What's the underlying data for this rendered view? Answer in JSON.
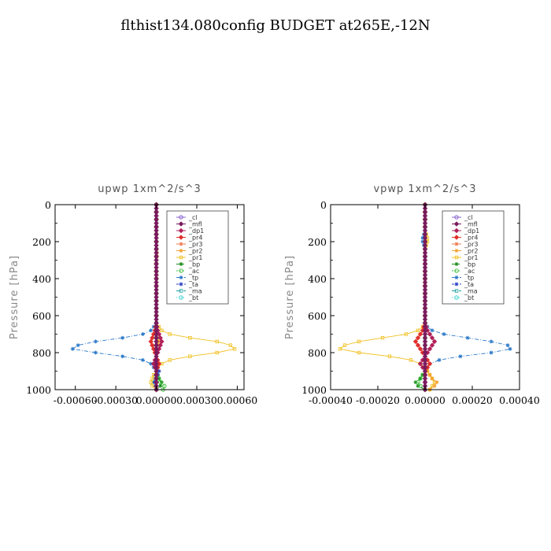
{
  "title": "flthist134.080config  BUDGET at265E,-12N",
  "colors": {
    "_cl": "#8a63d2",
    "_mfl": "#7a1a5e",
    "_dp1": "#b0205a",
    "_pr4": "#e0302c",
    "_pr3": "#f07848",
    "_pr2": "#f5a030",
    "_pr1": "#f0c020",
    "_bp": "#1a8a1a",
    "_ac": "#40c040",
    "_tp": "#2a78c8",
    "_ta": "#2a40c8",
    "_ma": "#20a0a0",
    "_bt": "#30d0d0"
  },
  "chart_data": [
    {
      "type": "line",
      "title": "upwp   1xm^2/s^3",
      "ylabel": "Pressure [hPa]",
      "xlim": [
        -0.00075,
        0.00065
      ],
      "ylim": [
        1000,
        0
      ],
      "xticks": [
        -0.0006,
        -0.0003,
        0.0,
        0.0003,
        0.0006
      ],
      "xtick_labels": [
        "-0.00060",
        "-0.00030",
        "0.00000",
        "0.00030",
        "0.00060"
      ],
      "yticks": [
        0,
        200,
        400,
        600,
        800,
        1000
      ],
      "ytick_labels": [
        "0",
        "200",
        "400",
        "600",
        "800",
        "1000"
      ],
      "legend": [
        "_cl",
        "_mfl",
        "_dp1",
        "_pr4",
        "_pr3",
        "_pr2",
        "_pr1",
        "_bp",
        "_ac",
        "_tp",
        "_ta",
        "_ma",
        "_bt"
      ],
      "series": [
        {
          "name": "_tp",
          "x": [
            0,
            0,
            0,
            0,
            0,
            0,
            0,
            0,
            0,
            0,
            0,
            0,
            0,
            0,
            0,
            0,
            0,
            0,
            0,
            0,
            0,
            0,
            0,
            0,
            0,
            0,
            0,
            0,
            0,
            0,
            0,
            0,
            0,
            -2e-05,
            -4e-05,
            -0.0001,
            -0.00025,
            -0.00045,
            -0.00058,
            -0.00062,
            -0.00045,
            -0.00025,
            -0.0001,
            -4e-05,
            -2e-05,
            0,
            -1e-05,
            -1e-05,
            -2e-05,
            -1e-05,
            0
          ]
        },
        {
          "name": "_pr1",
          "x": [
            0,
            0,
            0,
            0,
            0,
            0,
            0,
            0,
            0,
            0,
            0,
            0,
            0,
            0,
            0,
            0,
            0,
            0,
            0,
            0,
            0,
            0,
            0,
            0,
            0,
            0,
            0,
            0,
            0,
            0,
            0,
            0,
            0,
            2e-05,
            4e-05,
            0.0001,
            0.00025,
            0.00045,
            0.00055,
            0.00058,
            0.00045,
            0.00025,
            0.0001,
            4e-05,
            1e-05,
            0,
            -2e-05,
            -3e-05,
            -4e-05,
            -3e-05,
            0
          ]
        },
        {
          "name": "_pr2",
          "x": [
            0,
            0,
            0,
            0,
            0,
            0,
            0,
            0,
            0,
            0,
            0,
            0,
            0,
            5e-06,
            5e-06,
            0,
            0,
            0,
            0,
            0,
            0,
            0,
            0,
            0,
            0,
            0,
            0,
            0,
            0,
            0,
            0,
            0,
            0,
            0,
            0,
            0,
            1e-05,
            2e-05,
            1e-05,
            0,
            0,
            0,
            0,
            0,
            0,
            0,
            0,
            0,
            0,
            0,
            0
          ]
        },
        {
          "name": "_bp",
          "x": [
            0,
            0,
            0,
            0,
            0,
            0,
            0,
            0,
            0,
            0,
            0,
            0,
            0,
            0,
            0,
            0,
            0,
            0,
            0,
            0,
            0,
            0,
            0,
            0,
            0,
            0,
            0,
            0,
            0,
            0,
            0,
            0,
            0,
            0,
            0,
            0,
            0,
            0,
            0,
            0,
            0,
            0,
            0,
            0,
            0,
            0,
            1e-05,
            2e-05,
            4e-05,
            3e-05,
            0
          ]
        },
        {
          "name": "_ac",
          "x": [
            0,
            0,
            0,
            0,
            0,
            0,
            0,
            0,
            0,
            0,
            0,
            0,
            0,
            0,
            0,
            0,
            0,
            0,
            0,
            0,
            0,
            0,
            0,
            0,
            0,
            0,
            0,
            0,
            0,
            0,
            0,
            0,
            0,
            0,
            0,
            0,
            0,
            0,
            0,
            0,
            0,
            0,
            0,
            0,
            0,
            0,
            1e-05,
            2e-05,
            3e-05,
            6e-05,
            5e-05
          ]
        },
        {
          "name": "_ta",
          "x": [
            0,
            0,
            0,
            0,
            0,
            0,
            0,
            0,
            0,
            0,
            0,
            0,
            0,
            0,
            0,
            0,
            0,
            0,
            0,
            0,
            0,
            0,
            0,
            0,
            0,
            0,
            0,
            0,
            0,
            0,
            0,
            0,
            0,
            0,
            0,
            0,
            0,
            0,
            0,
            0,
            0,
            0,
            0,
            0,
            1e-05,
            2e-05,
            1e-05,
            0,
            -1e-05,
            0,
            0
          ]
        },
        {
          "name": "_pr4",
          "x": [
            0,
            0,
            0,
            0,
            0,
            0,
            0,
            0,
            0,
            0,
            0,
            0,
            0,
            0,
            0,
            0,
            0,
            0,
            0,
            0,
            0,
            0,
            0,
            0,
            0,
            0,
            0,
            0,
            0,
            0,
            0,
            0,
            0,
            -5e-06,
            -1e-05,
            -2e-05,
            -3e-05,
            -4e-05,
            -3e-05,
            -2e-05,
            -1e-05,
            0,
            1e-05,
            2e-05,
            1e-05,
            0,
            0,
            0,
            0,
            0,
            0
          ]
        },
        {
          "name": "_dp1",
          "x": [
            0,
            0,
            0,
            0,
            0,
            0,
            0,
            0,
            0,
            0,
            0,
            0,
            0,
            0,
            0,
            0,
            0,
            0,
            0,
            0,
            0,
            0,
            0,
            0,
            0,
            0,
            0,
            0,
            0,
            0,
            0,
            0,
            0,
            5e-06,
            1e-05,
            2e-05,
            3e-05,
            4e-05,
            3e-05,
            2e-05,
            1e-05,
            0,
            -1e-05,
            -2e-05,
            -1e-05,
            0,
            0,
            0,
            0,
            0,
            0
          ]
        },
        {
          "name": "_mfl",
          "x": [
            0,
            0,
            0,
            0,
            0,
            0,
            0,
            0,
            0,
            0,
            0,
            0,
            0,
            0,
            0,
            0,
            0,
            0,
            0,
            0,
            0,
            0,
            0,
            0,
            0,
            0,
            0,
            0,
            0,
            0,
            0,
            0,
            0,
            0,
            0,
            0,
            0,
            0,
            0,
            0,
            0,
            0,
            0,
            0,
            0,
            0,
            0,
            0,
            0,
            0,
            0
          ]
        }
      ]
    },
    {
      "type": "line",
      "title": "vpwp   1xm^2/s^3",
      "ylabel": "Pressure [hPa]",
      "xlim": [
        -0.0004,
        0.0004
      ],
      "ylim": [
        1000,
        0
      ],
      "xticks": [
        -0.0004,
        -0.0002,
        0.0,
        0.0002,
        0.0004
      ],
      "xtick_labels": [
        "-0.00040",
        "-0.00020",
        "0.00000",
        "0.00020",
        "0.00040"
      ],
      "yticks": [
        0,
        200,
        400,
        600,
        800,
        1000
      ],
      "ytick_labels": [
        "0",
        "200",
        "400",
        "600",
        "800",
        "1000"
      ],
      "legend": [
        "_cl",
        "_mfl",
        "_dp1",
        "_pr4",
        "_pr3",
        "_pr2",
        "_pr1",
        "_bp",
        "_ac",
        "_tp",
        "_ta",
        "_ma",
        "_bt"
      ],
      "series": [
        {
          "name": "_tp",
          "x": [
            0,
            0,
            0,
            0,
            0,
            0,
            0,
            0,
            -5e-06,
            -1e-05,
            -1e-05,
            -5e-06,
            0,
            0,
            0,
            0,
            0,
            0,
            0,
            0,
            0,
            0,
            0,
            0,
            0,
            0,
            0,
            0,
            0,
            0,
            0,
            0,
            0,
            1e-05,
            3e-05,
            8e-05,
            0.00018,
            0.00028,
            0.00035,
            0.00036,
            0.00028,
            0.00015,
            6e-05,
            2e-05,
            1e-05,
            0,
            0,
            0,
            0,
            0,
            0
          ]
        },
        {
          "name": "_pr1",
          "x": [
            0,
            0,
            0,
            0,
            0,
            0,
            0,
            0,
            5e-06,
            1e-05,
            1e-05,
            5e-06,
            0,
            0,
            0,
            0,
            0,
            0,
            0,
            0,
            0,
            0,
            0,
            0,
            0,
            0,
            0,
            0,
            0,
            0,
            0,
            0,
            0,
            -1e-05,
            -3e-05,
            -8e-05,
            -0.00018,
            -0.00028,
            -0.00034,
            -0.00036,
            -0.00028,
            -0.00015,
            -6e-05,
            -2e-05,
            0,
            1e-05,
            2e-05,
            3e-05,
            4e-05,
            3e-05,
            2e-05
          ]
        },
        {
          "name": "_pr2",
          "x": [
            0,
            0,
            0,
            0,
            0,
            0,
            0,
            0,
            0,
            0,
            0,
            0,
            0,
            0,
            0,
            0,
            0,
            0,
            0,
            0,
            0,
            0,
            0,
            0,
            0,
            0,
            0,
            0,
            0,
            0,
            0,
            0,
            0,
            0,
            0,
            0,
            0,
            0,
            0,
            0,
            0,
            0,
            0,
            0,
            0,
            1e-05,
            2e-05,
            3e-05,
            5e-05,
            4e-05,
            2e-05
          ]
        },
        {
          "name": "_bp",
          "x": [
            0,
            0,
            0,
            0,
            0,
            0,
            0,
            0,
            0,
            0,
            0,
            0,
            0,
            0,
            0,
            0,
            0,
            0,
            0,
            0,
            0,
            0,
            0,
            0,
            0,
            0,
            0,
            0,
            0,
            0,
            0,
            0,
            0,
            0,
            0,
            0,
            0,
            0,
            0,
            0,
            0,
            0,
            0,
            0,
            0,
            0,
            -1e-05,
            -2e-05,
            -4e-05,
            -3e-05,
            0
          ]
        },
        {
          "name": "_ac",
          "x": [
            0,
            0,
            0,
            0,
            0,
            0,
            0,
            0,
            0,
            0,
            0,
            0,
            0,
            0,
            0,
            0,
            0,
            0,
            0,
            0,
            0,
            0,
            0,
            0,
            0,
            0,
            0,
            0,
            0,
            0,
            0,
            0,
            0,
            0,
            0,
            0,
            0,
            0,
            0,
            0,
            0,
            0,
            0,
            0,
            0,
            0,
            -1e-05,
            -2e-05,
            -3e-05,
            -2e-05,
            0
          ]
        },
        {
          "name": "_pr4",
          "x": [
            0,
            0,
            0,
            0,
            0,
            0,
            0,
            0,
            0,
            0,
            0,
            0,
            0,
            0,
            0,
            0,
            0,
            0,
            0,
            0,
            0,
            0,
            0,
            0,
            0,
            0,
            0,
            0,
            0,
            0,
            0,
            0,
            0,
            -5e-06,
            -1e-05,
            -2e-05,
            -3e-05,
            -4e-05,
            -3e-05,
            -2e-05,
            -1e-05,
            0,
            1e-05,
            2e-05,
            1e-05,
            0,
            0,
            0,
            0,
            0,
            0
          ]
        },
        {
          "name": "_dp1",
          "x": [
            0,
            0,
            0,
            0,
            0,
            0,
            0,
            0,
            0,
            0,
            0,
            0,
            0,
            0,
            0,
            0,
            0,
            0,
            0,
            0,
            0,
            0,
            0,
            0,
            0,
            0,
            0,
            0,
            0,
            0,
            0,
            0,
            0,
            5e-06,
            1e-05,
            2e-05,
            3e-05,
            4e-05,
            3e-05,
            2e-05,
            1e-05,
            0,
            -1e-05,
            -2e-05,
            -1e-05,
            0,
            0,
            0,
            0,
            0,
            0
          ]
        },
        {
          "name": "_mfl",
          "x": [
            0,
            0,
            0,
            0,
            0,
            0,
            0,
            0,
            0,
            0,
            0,
            0,
            0,
            0,
            0,
            0,
            0,
            0,
            0,
            0,
            0,
            0,
            0,
            0,
            0,
            0,
            0,
            0,
            0,
            0,
            0,
            0,
            0,
            0,
            0,
            0,
            0,
            0,
            0,
            0,
            0,
            0,
            0,
            0,
            0,
            0,
            0,
            0,
            0,
            0,
            0
          ]
        }
      ]
    }
  ]
}
